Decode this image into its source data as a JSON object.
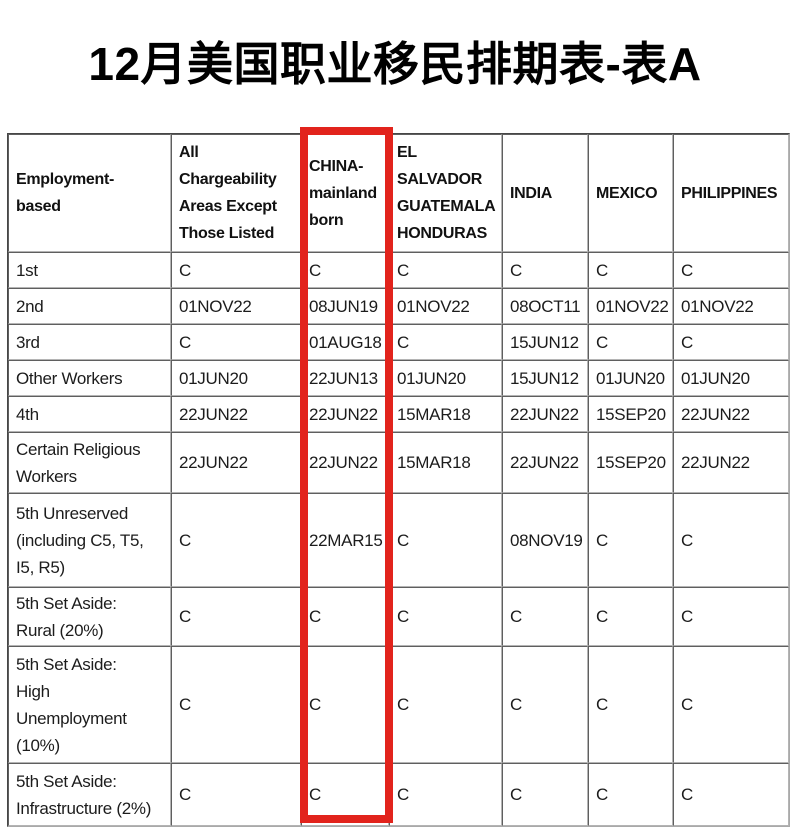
{
  "page": {
    "title": "12月美国职业移民排期表-表A"
  },
  "highlight": {
    "color": "#e2231c",
    "highlighted_column": "CHINA-mainland born"
  },
  "table": {
    "columns": [
      {
        "key": "label",
        "header": "Employment-\nbased",
        "highlighted": false
      },
      {
        "key": "all_areas",
        "header": "All\nChargeability\nAreas Except\nThose Listed",
        "highlighted": false
      },
      {
        "key": "china",
        "header": "CHINA-\nmainland\nborn",
        "highlighted": true
      },
      {
        "key": "el_salvador",
        "header": "EL\nSALVADOR\nGUATEMALA\nHONDURAS",
        "highlighted": false
      },
      {
        "key": "india",
        "header": "INDIA",
        "highlighted": false
      },
      {
        "key": "mexico",
        "header": "MEXICO",
        "highlighted": false
      },
      {
        "key": "philippines",
        "header": "PHILIPPINES",
        "highlighted": false
      }
    ],
    "rows": [
      {
        "label": "1st",
        "cells": [
          "C",
          "C",
          "C",
          "C",
          "C",
          "C"
        ]
      },
      {
        "label": "2nd",
        "cells": [
          "01NOV22",
          "08JUN19",
          "01NOV22",
          "08OCT11",
          "01NOV22",
          "01NOV22"
        ]
      },
      {
        "label": "3rd",
        "cells": [
          "C",
          "01AUG18",
          "C",
          "15JUN12",
          "C",
          "C"
        ]
      },
      {
        "label": "Other Workers",
        "cells": [
          "01JUN20",
          "22JUN13",
          "01JUN20",
          "15JUN12",
          "01JUN20",
          "01JUN20"
        ]
      },
      {
        "label": "4th",
        "cells": [
          "22JUN22",
          "22JUN22",
          "15MAR18",
          "22JUN22",
          "15SEP20",
          "22JUN22"
        ]
      },
      {
        "label": "Certain Religious\nWorkers",
        "cells": [
          "22JUN22",
          "22JUN22",
          "15MAR18",
          "22JUN22",
          "15SEP20",
          "22JUN22"
        ]
      },
      {
        "label": "5th Unreserved\n(including C5, T5,\nI5, R5)",
        "cells": [
          "C",
          "22MAR15",
          "C",
          "08NOV19",
          "C",
          "C"
        ]
      },
      {
        "label": "5th Set Aside:\nRural (20%)",
        "cells": [
          "C",
          "C",
          "C",
          "C",
          "C",
          "C"
        ]
      },
      {
        "label": "5th Set Aside:\nHigh\nUnemployment\n(10%)",
        "cells": [
          "C",
          "C",
          "C",
          "C",
          "C",
          "C"
        ]
      },
      {
        "label": "5th Set Aside:\nInfrastructure (2%)",
        "cells": [
          "C",
          "C",
          "C",
          "C",
          "C",
          "C"
        ]
      }
    ]
  }
}
